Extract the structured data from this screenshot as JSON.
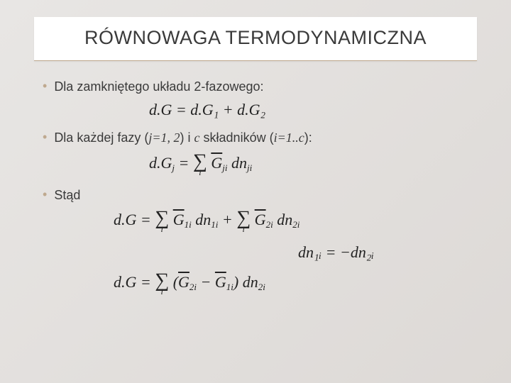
{
  "title": "RÓWNOWAGA TERMODYNAMICZNA",
  "bullets": {
    "b1_pre": "Dla zamkniętego układu 2-fazowego:",
    "b2_pre": "Dla każdej fazy (",
    "b2_j": "j=1, 2",
    "b2_mid": ") i ",
    "b2_c": "c",
    "b2_mid2": " składników (",
    "b2_i": "i=1..c",
    "b2_end": "):",
    "b3": "Stąd"
  },
  "equations": {
    "eq1": "d.G = d.G₁ + d.G₂",
    "eq3": "dn₁ᵢ = −dn₂ᵢ"
  },
  "colors": {
    "bg_start": "#e8e6e4",
    "bg_end": "#ddd9d6",
    "card_bg": "#ffffff",
    "accent": "#bfa98f",
    "text": "#3a3a3a"
  }
}
